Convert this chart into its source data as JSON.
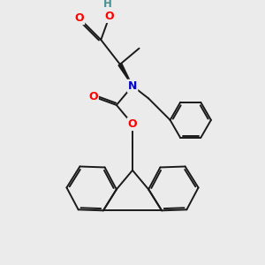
{
  "background_color": "#ebebeb",
  "atom_colors": {
    "O": "#ff0000",
    "N": "#0000cc",
    "H": "#4a9090",
    "C": "#1a1a1a"
  },
  "bond_color": "#1a1a1a",
  "bond_lw": 1.4
}
